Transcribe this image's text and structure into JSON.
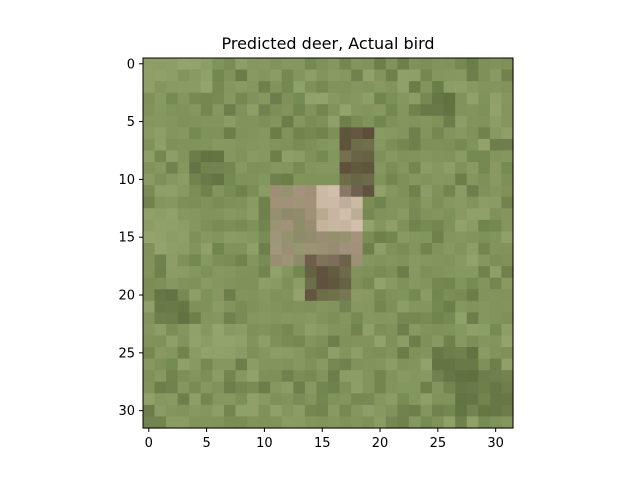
{
  "chart_data": {
    "type": "heatmap",
    "title": "Predicted deer, Actual bird",
    "xlabel": "",
    "ylabel": "",
    "image_size": [
      32,
      32
    ],
    "xlim": [
      -0.5,
      31.5
    ],
    "ylim": [
      31.5,
      -0.5
    ],
    "y_axis_inverted": true,
    "grid": false,
    "x_ticks": [
      0,
      5,
      10,
      15,
      20,
      25,
      30
    ],
    "y_ticks": [
      0,
      5,
      10,
      15,
      20,
      25,
      30
    ],
    "colors": {
      "background": "#7d9158",
      "grass_light": "#94a56e",
      "grass_dark": "#5e7040",
      "bird_light": "#d8c4b2",
      "bird_mid": "#a89080",
      "bird_dark": "#5a4838",
      "frame": "#000000"
    },
    "regions": [
      {
        "kind": "bird_body",
        "row_range": [
          11,
          18
        ],
        "col_range": [
          11,
          19
        ],
        "tone": "bird_mid"
      },
      {
        "kind": "bird_highlight",
        "row_range": [
          11,
          15
        ],
        "col_range": [
          15,
          19
        ],
        "tone": "bird_light"
      },
      {
        "kind": "bird_neck",
        "row_range": [
          6,
          12
        ],
        "col_range": [
          17,
          20
        ],
        "tone": "bird_dark"
      },
      {
        "kind": "bird_legs",
        "row_range": [
          17,
          21
        ],
        "col_range": [
          14,
          18
        ],
        "tone": "bird_dark"
      },
      {
        "kind": "grass_shadow",
        "row_range": [
          20,
          23
        ],
        "col_range": [
          1,
          4
        ],
        "tone": "grass_dark"
      },
      {
        "kind": "grass_shadow",
        "row_range": [
          8,
          11
        ],
        "col_range": [
          4,
          7
        ],
        "tone": "grass_dark"
      },
      {
        "kind": "grass_shadow",
        "row_range": [
          3,
          5
        ],
        "col_range": [
          24,
          27
        ],
        "tone": "grass_dark"
      },
      {
        "kind": "grass_shadow",
        "row_range": [
          25,
          28
        ],
        "col_range": [
          25,
          29
        ],
        "tone": "grass_dark"
      },
      {
        "kind": "grass_shadow",
        "row_range": [
          27,
          31
        ],
        "col_range": [
          27,
          32
        ],
        "tone": "grass_dark"
      },
      {
        "kind": "grass_light_patch",
        "row_range": [
          23,
          26
        ],
        "col_range": [
          4,
          9
        ],
        "tone": "grass_light"
      },
      {
        "kind": "grass_light_patch",
        "row_range": [
          0,
          3
        ],
        "col_range": [
          0,
          6
        ],
        "tone": "grass_light"
      },
      {
        "kind": "grass_light_patch",
        "row_range": [
          13,
          17
        ],
        "col_range": [
          0,
          4
        ],
        "tone": "grass_light"
      }
    ]
  }
}
